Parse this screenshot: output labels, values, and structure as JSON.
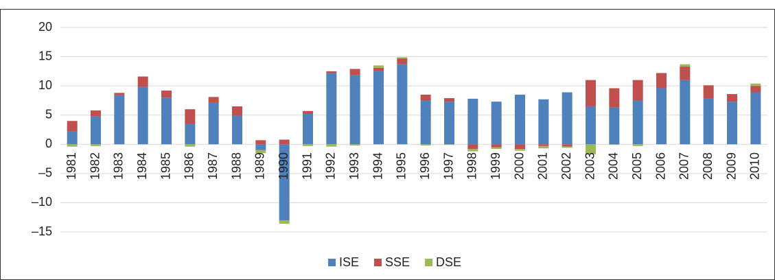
{
  "chart_data": {
    "type": "stacked_bar",
    "categories": [
      "1981",
      "1982",
      "1983",
      "1984",
      "1985",
      "1986",
      "1987",
      "1988",
      "1989",
      "1990",
      "1991",
      "1992",
      "1993",
      "1994",
      "1995",
      "1996",
      "1997",
      "1998",
      "1999",
      "2000",
      "2001",
      "2002",
      "2003",
      "2004",
      "2005",
      "2006",
      "2007",
      "2008",
      "2009",
      "2010"
    ],
    "series": [
      {
        "name": "ISE",
        "color": "#4f81bd",
        "values": [
          2.2,
          4.8,
          8.4,
          9.8,
          8.0,
          3.5,
          7.2,
          4.9,
          -1.0,
          -13.0,
          5.2,
          12.2,
          11.8,
          12.5,
          13.7,
          7.5,
          7.3,
          7.8,
          7.3,
          8.5,
          7.7,
          8.9,
          6.5,
          6.3,
          7.5,
          9.6,
          11.0,
          7.9,
          7.3,
          8.9
        ]
      },
      {
        "name": "SSE",
        "color": "#c0504d",
        "values": [
          1.8,
          1.0,
          0.4,
          1.8,
          1.2,
          2.5,
          0.9,
          1.6,
          0.7,
          0.8,
          0.5,
          0.3,
          1.1,
          0.6,
          1.0,
          1.0,
          0.6,
          -0.8,
          -0.5,
          -0.8,
          -0.3,
          -0.4,
          4.5,
          3.3,
          3.5,
          2.6,
          2.3,
          2.2,
          1.3,
          1.1
        ]
      },
      {
        "name": "DSE",
        "color": "#9bbb59",
        "values": [
          -0.4,
          -0.3,
          0,
          0,
          0,
          -0.4,
          0,
          0,
          -0.5,
          -0.6,
          -0.3,
          -0.4,
          -0.2,
          0.4,
          0.2,
          -0.2,
          -0.1,
          -0.4,
          -0.3,
          -0.3,
          -0.4,
          -0.2,
          -1.7,
          -0.1,
          -0.3,
          0,
          0.4,
          0,
          0,
          0.4
        ]
      }
    ],
    "ylim": [
      -15,
      20
    ],
    "yticks": [
      {
        "value": -15,
        "label": "–15"
      },
      {
        "value": -10,
        "label": "–10"
      },
      {
        "value": -5,
        "label": "–5"
      },
      0,
      5,
      10,
      15,
      20
    ],
    "grid": true,
    "legend": "bottom"
  }
}
